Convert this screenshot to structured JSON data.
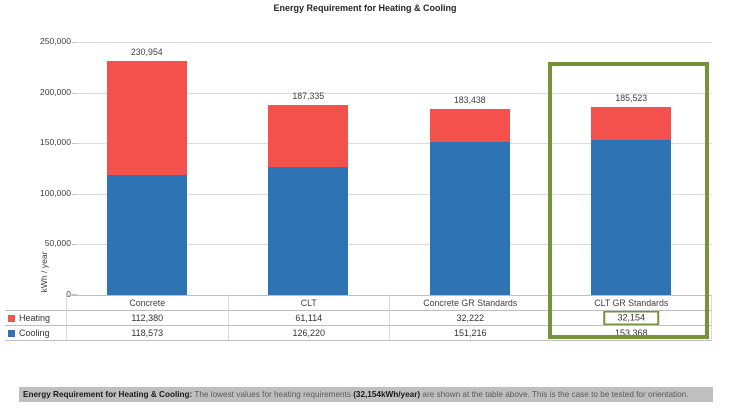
{
  "title": "Energy Requirement for Heating & Cooling",
  "chart_data": {
    "type": "bar",
    "subtype": "stacked",
    "title": "Energy Requirement for Heating & Cooling",
    "categories": [
      "Concrete",
      "CLT",
      "Concrete GR Standards",
      "CLT GR Standards"
    ],
    "series": [
      {
        "name": "Heating",
        "color": "#F4514C",
        "position": "top",
        "values": [
          112380,
          61114,
          32222,
          32154
        ],
        "labels": [
          "112,380",
          "61,114",
          "32,222",
          "32,154"
        ]
      },
      {
        "name": "Cooling",
        "color": "#2E74B5",
        "position": "bottom",
        "values": [
          118573,
          126220,
          151216,
          153368
        ],
        "labels": [
          "118,573",
          "126,220",
          "151,216",
          "153,368"
        ]
      }
    ],
    "totals": [
      "230,954",
      "187,335",
      "183,438",
      "185,523"
    ],
    "total_values": [
      230954,
      187335,
      183438,
      185523
    ],
    "xlabel": "",
    "ylabel": "kWh / year",
    "ylim": [
      0,
      250000
    ],
    "y_ticks": [
      0,
      50000,
      100000,
      150000,
      200000,
      250000
    ],
    "y_tick_labels": [
      "0",
      "50,000",
      "100,000",
      "150,000",
      "200,000",
      "250,000"
    ],
    "grid": true,
    "legend_position": "left-of-table",
    "legend": [
      {
        "label": "Heating",
        "color": "#F4514C"
      },
      {
        "label": "Cooling",
        "color": "#2E74B5"
      }
    ]
  },
  "highlight": {
    "color": "#76933C",
    "highlighted_column": "CLT GR Standards",
    "boxed_cell_value": "32,154"
  },
  "caption": {
    "bold_lead": "Energy Requirement for Heating & Cooling:",
    "text_1": " The lowest values for heating requirements ",
    "bold_value": "(32,154kWh/year)",
    "text_2": " are shown at the table above. This is the case to be tested for orientation."
  }
}
